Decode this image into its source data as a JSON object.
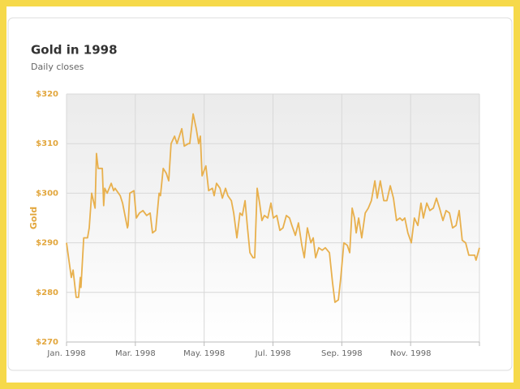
{
  "chart_data": {
    "type": "line",
    "title": "Gold in 1998",
    "subtitle": "Daily closes",
    "ylabel": "Gold",
    "ylim": [
      270,
      320
    ],
    "yticks": [
      {
        "value": 270,
        "label": "$270"
      },
      {
        "value": 280,
        "label": "$280"
      },
      {
        "value": 290,
        "label": "$290"
      },
      {
        "value": 300,
        "label": "$300"
      },
      {
        "value": 310,
        "label": "$310"
      },
      {
        "value": 320,
        "label": "$320"
      }
    ],
    "xlim": [
      0,
      12
    ],
    "xticks": [
      {
        "value": 0,
        "label": "Jan. 1998"
      },
      {
        "value": 2,
        "label": "Mar. 1998"
      },
      {
        "value": 4,
        "label": "May. 1998"
      },
      {
        "value": 6,
        "label": "Jul. 1998"
      },
      {
        "value": 8,
        "label": "Sep. 1998"
      },
      {
        "value": 10,
        "label": "Nov. 1998"
      },
      {
        "value": 12,
        "label": null
      }
    ],
    "grid": true,
    "series": [
      {
        "name": "Gold",
        "color": "#e8b04d",
        "x": [
          0,
          0.14,
          0.19,
          0.28,
          0.35,
          0.4,
          0.42,
          0.5,
          0.61,
          0.66,
          0.73,
          0.83,
          0.87,
          0.92,
          1.04,
          1.08,
          1.11,
          1.18,
          1.3,
          1.37,
          1.41,
          1.56,
          1.63,
          1.77,
          1.79,
          1.84,
          1.96,
          2.03,
          2.12,
          2.22,
          2.33,
          2.43,
          2.5,
          2.59,
          2.69,
          2.73,
          2.81,
          2.9,
          2.97,
          3.04,
          3.14,
          3.21,
          3.35,
          3.42,
          3.54,
          3.58,
          3.68,
          3.77,
          3.84,
          3.89,
          3.94,
          4.05,
          4.13,
          4.24,
          4.29,
          4.36,
          4.46,
          4.53,
          4.62,
          4.69,
          4.79,
          4.86,
          4.95,
          5.04,
          5.11,
          5.19,
          5.26,
          5.33,
          5.42,
          5.47,
          5.54,
          5.61,
          5.68,
          5.75,
          5.85,
          5.94,
          6.01,
          6.11,
          6.2,
          6.29,
          6.39,
          6.48,
          6.55,
          6.65,
          6.74,
          6.84,
          6.91,
          7.0,
          7.1,
          7.17,
          7.24,
          7.33,
          7.43,
          7.52,
          7.64,
          7.73,
          7.8,
          7.9,
          7.97,
          8.06,
          8.16,
          8.23,
          8.3,
          8.37,
          8.42,
          8.49,
          8.58,
          8.68,
          8.77,
          8.86,
          8.96,
          9.03,
          9.12,
          9.22,
          9.31,
          9.41,
          9.5,
          9.59,
          9.69,
          9.76,
          9.83,
          9.92,
          10.02,
          10.11,
          10.21,
          10.3,
          10.37,
          10.47,
          10.56,
          10.66,
          10.75,
          10.84,
          10.94,
          11.03,
          11.13,
          11.22,
          11.32,
          11.41,
          11.5,
          11.6,
          11.69,
          11.79,
          11.86,
          11.9,
          12.0
        ],
        "values": [
          290,
          283,
          284.5,
          279,
          279,
          283,
          281,
          291,
          291,
          293,
          300,
          297,
          308,
          305,
          305,
          297.5,
          301,
          300,
          302,
          300.5,
          301,
          299.5,
          298,
          293,
          293.5,
          300,
          300.5,
          295,
          296,
          296.5,
          295.5,
          296,
          292,
          292.5,
          300,
          299.5,
          305,
          304,
          302.5,
          310,
          311.5,
          310,
          313,
          309.5,
          310,
          310,
          316,
          313,
          310,
          311.5,
          303.5,
          305.5,
          300.5,
          301,
          299.5,
          302,
          301,
          299,
          301,
          299.5,
          298.5,
          296,
          291,
          296,
          295.5,
          298.5,
          293,
          288,
          287,
          287,
          301,
          298,
          294.5,
          295.5,
          295,
          298,
          295,
          295.5,
          292.5,
          293,
          295.5,
          295,
          293.5,
          291.5,
          294,
          289.5,
          287,
          293,
          290,
          291,
          287,
          289,
          288.5,
          289,
          288,
          282,
          278,
          278.5,
          283,
          290,
          289.5,
          288,
          297,
          295,
          292,
          295,
          291,
          296,
          297,
          298.5,
          302.5,
          299,
          302.5,
          298.5,
          298.5,
          301.5,
          299,
          294.5,
          295,
          294.5,
          295,
          292,
          290,
          295,
          293.5,
          298,
          295,
          298,
          296.5,
          297,
          299,
          297,
          294.5,
          296.5,
          296,
          293,
          293.5,
          296.5,
          290.5,
          290,
          287.5,
          287.5,
          287.5,
          286.5,
          289
        ]
      }
    ]
  }
}
